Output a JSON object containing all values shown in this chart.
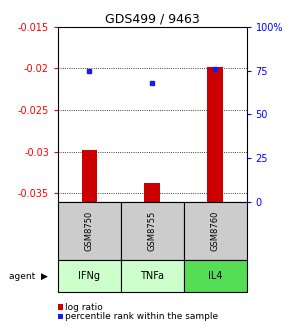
{
  "title": "GDS499 / 9463",
  "samples": [
    "GSM8750",
    "GSM8755",
    "GSM8760"
  ],
  "agents": [
    "IFNg",
    "TNFa",
    "IL4"
  ],
  "log_ratios": [
    -0.0298,
    -0.0338,
    -0.0198
  ],
  "percentile_ranks": [
    75.0,
    68.0,
    76.0
  ],
  "ylim_left": [
    -0.036,
    -0.015
  ],
  "ylim_right": [
    0,
    100
  ],
  "yticks_left": [
    -0.035,
    -0.03,
    -0.025,
    -0.02,
    -0.015
  ],
  "yticks_right": [
    0,
    25,
    50,
    75,
    100
  ],
  "bar_color": "#cc0000",
  "dot_color": "#1a1aee",
  "agent_colors": [
    "#ccffcc",
    "#ccffcc",
    "#55dd55"
  ],
  "sample_bg": "#cccccc",
  "legend_bar_label": "log ratio",
  "legend_dot_label": "percentile rank within the sample",
  "title_fontsize": 9,
  "tick_fontsize": 7,
  "bar_width": 0.25
}
